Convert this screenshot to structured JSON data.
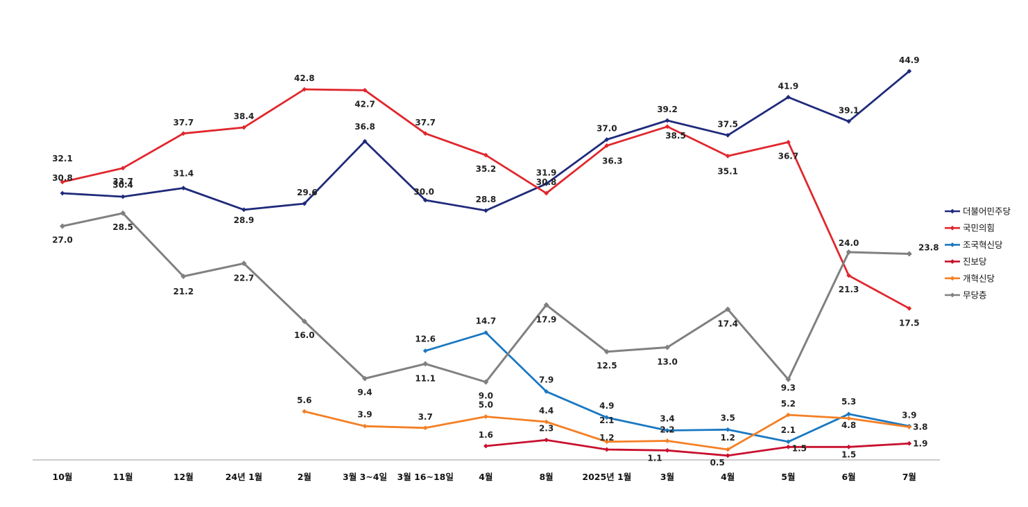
{
  "chart_data": {
    "type": "line",
    "title": "",
    "xlabel": "",
    "ylabel": "",
    "ylim": [
      0,
      48
    ],
    "grid": false,
    "legend": "right",
    "categories": [
      "10월",
      "11월",
      "12월",
      "24년 1월",
      "2월",
      "3월 3~4일",
      "3월 16~18일",
      "4월",
      "8월",
      "2025년 1월",
      "3월",
      "4월",
      "5월",
      "6월",
      "7월"
    ],
    "series": [
      {
        "name": "더불어민주당",
        "color": "#1f2a7a",
        "values": [
          30.8,
          30.4,
          31.4,
          28.9,
          29.6,
          36.8,
          30.0,
          28.8,
          31.9,
          37.0,
          39.2,
          37.5,
          41.9,
          39.1,
          44.9
        ]
      },
      {
        "name": "국민의힘",
        "color": "#e0272d",
        "values": [
          32.1,
          33.7,
          37.7,
          38.4,
          42.8,
          42.7,
          37.7,
          35.2,
          30.8,
          36.3,
          38.5,
          35.1,
          36.7,
          21.3,
          17.5
        ]
      },
      {
        "name": "조국혁신당",
        "color": "#1a78c2",
        "values": [
          null,
          null,
          null,
          null,
          null,
          null,
          12.6,
          14.7,
          7.9,
          4.9,
          3.4,
          3.5,
          2.1,
          5.3,
          3.9
        ]
      },
      {
        "name": "진보당",
        "color": "#c8102e",
        "values": [
          null,
          null,
          null,
          null,
          null,
          null,
          null,
          1.6,
          2.3,
          1.2,
          1.1,
          0.5,
          1.5,
          1.5,
          1.9
        ]
      },
      {
        "name": "개혁신당",
        "color": "#f47f24",
        "values": [
          null,
          null,
          null,
          null,
          5.6,
          3.9,
          3.7,
          5.0,
          4.4,
          2.1,
          2.2,
          1.2,
          5.2,
          4.8,
          3.8
        ]
      },
      {
        "name": "무당층",
        "color": "#808080",
        "values": [
          27.0,
          28.5,
          21.2,
          22.7,
          16.0,
          9.4,
          11.1,
          9.0,
          17.9,
          12.5,
          13.0,
          17.4,
          9.3,
          24.0,
          23.8
        ]
      }
    ]
  }
}
